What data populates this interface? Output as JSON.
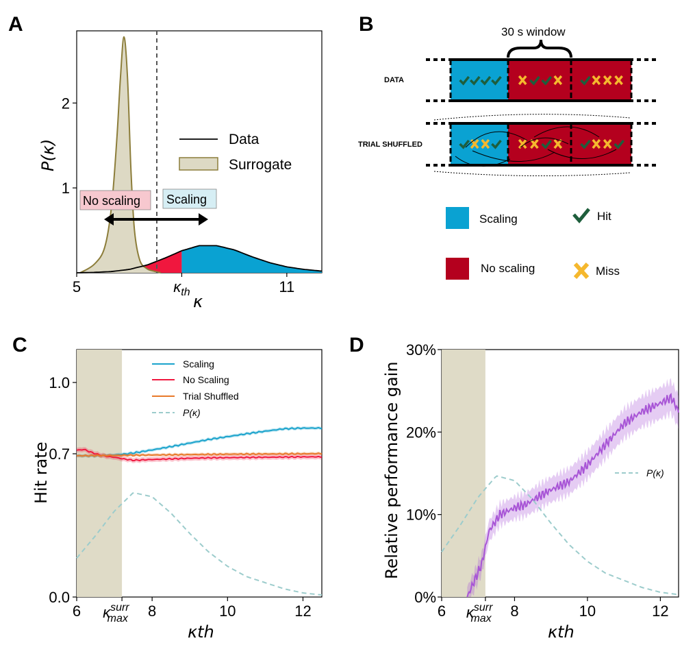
{
  "panels": {
    "a": "A",
    "b": "B",
    "c": "C",
    "d": "D"
  },
  "colors": {
    "scaling": "#1aa3cc",
    "no_scaling": "#f0173e",
    "shuffled": "#e8792a",
    "pk": "#9ccccc",
    "surrogate_fill": "#ddd9c4",
    "surrogate_line": "#8c7d3a",
    "gain": "#a855d6",
    "block_blue": "#0aa2d2",
    "block_red": "#b4001e",
    "hit": "#1e5e3c",
    "miss": "#f5b82e"
  },
  "chart_data": [
    {
      "id": "A",
      "type": "area",
      "xlabel": "κ",
      "ylabel": "P(κ)",
      "xticks": [
        {
          "v": 5,
          "label": "5"
        },
        {
          "v": 8,
          "label": "κth"
        },
        {
          "v": 11,
          "label": "11"
        }
      ],
      "yticks": [
        {
          "v": 1,
          "label": "1"
        },
        {
          "v": 2,
          "label": "2"
        }
      ],
      "xlim": [
        5,
        12.0
      ],
      "ylim": [
        0,
        2.85
      ],
      "threshold": 8,
      "legend": [
        "Data",
        "Surrogate"
      ],
      "region_labels": {
        "no_scaling": "No scaling",
        "scaling": "Scaling"
      },
      "surrogate": {
        "x": [
          5.1,
          5.5,
          5.8,
          6.0,
          6.15,
          6.25,
          6.35,
          6.45,
          6.55,
          6.65,
          6.8,
          7.0,
          7.2,
          7.4
        ],
        "y": [
          0.0,
          0.1,
          0.3,
          0.8,
          1.6,
          2.3,
          2.78,
          2.3,
          1.2,
          0.5,
          0.15,
          0.05,
          0.02,
          0.0
        ]
      },
      "data": {
        "x": [
          5.0,
          5.5,
          6.0,
          6.5,
          7.0,
          7.5,
          8.0,
          8.5,
          9.0,
          9.5,
          10.0,
          10.5,
          11.0,
          11.5,
          12.0
        ],
        "y": [
          0.0,
          0.005,
          0.015,
          0.04,
          0.09,
          0.17,
          0.26,
          0.32,
          0.32,
          0.27,
          0.19,
          0.12,
          0.07,
          0.04,
          0.02
        ]
      }
    },
    {
      "id": "C",
      "type": "line",
      "xlabel": "κth",
      "ylabel": "Hit rate",
      "xticks": [
        {
          "v": 6,
          "label": "6"
        },
        {
          "v": 7.2,
          "label": "κmax surr"
        },
        {
          "v": 8,
          "label": "8"
        },
        {
          "v": 10,
          "label": "10"
        },
        {
          "v": 12,
          "label": "12"
        }
      ],
      "yticks": [
        {
          "v": 0.0,
          "label": "0.0"
        },
        {
          "v": 0.7,
          "label": "0.7"
        },
        {
          "v": 1.0,
          "label": "1.0"
        }
      ],
      "xlim": [
        6,
        12.5
      ],
      "shaded": [
        6,
        7.2
      ],
      "ylim_break": {
        "bottom_range": [
          0.0,
          0.7
        ],
        "top_range": [
          0.7,
          1.0
        ]
      },
      "legend_labels": [
        "Scaling",
        "No Scaling",
        "Trial Shuffled",
        "P(κ)"
      ],
      "series": [
        {
          "name": "Scaling",
          "x": [
            6.0,
            6.5,
            7.0,
            7.5,
            8.0,
            8.5,
            9.0,
            9.5,
            10.0,
            10.5,
            11.0,
            11.5,
            12.0,
            12.5
          ],
          "y": [
            0.69,
            0.69,
            0.694,
            0.703,
            0.716,
            0.73,
            0.745,
            0.76,
            0.772,
            0.784,
            0.795,
            0.805,
            0.808,
            0.808
          ]
        },
        {
          "name": "No Scaling",
          "x": [
            6.0,
            6.2,
            6.4,
            6.6,
            6.8,
            7.0,
            7.2,
            7.5,
            8.0,
            8.5,
            9.0,
            9.5,
            10.0,
            11.0,
            12.0,
            12.5
          ],
          "y": [
            0.715,
            0.718,
            0.705,
            0.695,
            0.687,
            0.683,
            0.676,
            0.668,
            0.672,
            0.675,
            0.678,
            0.68,
            0.681,
            0.683,
            0.685,
            0.685
          ]
        },
        {
          "name": "Trial Shuffled",
          "x": [
            6.0,
            7.0,
            8.0,
            9.0,
            10.0,
            11.0,
            12.0,
            12.5
          ],
          "y": [
            0.69,
            0.692,
            0.694,
            0.696,
            0.698,
            0.699,
            0.7,
            0.701
          ]
        },
        {
          "name": "P(κ)",
          "x": [
            6.0,
            6.5,
            7.0,
            7.5,
            8.0,
            8.5,
            9.0,
            9.5,
            10.0,
            10.5,
            11.0,
            11.5,
            12.0,
            12.5
          ],
          "y": [
            0.19,
            0.3,
            0.42,
            0.51,
            0.49,
            0.41,
            0.31,
            0.22,
            0.15,
            0.1,
            0.07,
            0.04,
            0.02,
            0.01
          ]
        }
      ]
    },
    {
      "id": "D",
      "type": "line",
      "xlabel": "κth",
      "ylabel": "Relative performance gain",
      "xticks": [
        {
          "v": 6,
          "label": "6"
        },
        {
          "v": 7.2,
          "label": "κmax surr"
        },
        {
          "v": 8,
          "label": "8"
        },
        {
          "v": 10,
          "label": "10"
        },
        {
          "v": 12,
          "label": "12"
        }
      ],
      "yticks": [
        {
          "v": 0,
          "label": "0%"
        },
        {
          "v": 10,
          "label": "10%"
        },
        {
          "v": 20,
          "label": "20%"
        },
        {
          "v": 30,
          "label": "30%"
        }
      ],
      "xlim": [
        6,
        12.5
      ],
      "ylim": [
        0,
        30
      ],
      "shaded": [
        6,
        7.2
      ],
      "legend_labels": [
        "P(κ)"
      ],
      "series": [
        {
          "name": "Relative performance gain",
          "x": [
            6.7,
            6.9,
            7.1,
            7.3,
            7.6,
            8.0,
            8.3,
            8.6,
            9.0,
            9.5,
            10.0,
            10.5,
            11.0,
            11.5,
            12.0,
            12.3,
            12.5
          ],
          "y": [
            0.0,
            2.0,
            4.0,
            8.0,
            10.0,
            10.8,
            11.2,
            12.0,
            13.0,
            14.0,
            16.0,
            18.5,
            21.0,
            22.5,
            23.5,
            24.2,
            22.5
          ],
          "band": 2.0
        },
        {
          "name": "P(κ)",
          "x": [
            6.0,
            6.5,
            7.0,
            7.5,
            8.0,
            8.5,
            9.0,
            9.5,
            10.0,
            10.5,
            11.0,
            11.5,
            12.0,
            12.5
          ],
          "y": [
            0.19,
            0.3,
            0.42,
            0.51,
            0.49,
            0.41,
            0.31,
            0.22,
            0.15,
            0.1,
            0.07,
            0.04,
            0.02,
            0.01
          ]
        }
      ]
    }
  ],
  "diagram_b": {
    "window_label": "30 s window",
    "row_labels": [
      "DATA",
      "TRIAL SHUFFLED"
    ],
    "data_row_marks": [
      "hit",
      "hit",
      "hit",
      "hit",
      "|",
      "miss",
      "hit",
      "hit",
      "miss",
      "|",
      "hit",
      "miss",
      "miss",
      "miss"
    ],
    "shuffled_row_marks": [
      "hit",
      "miss",
      "miss",
      "hit",
      "|",
      "miss",
      "miss",
      "hit",
      "miss",
      "|",
      "hit",
      "miss",
      "miss",
      "hit"
    ],
    "legend": {
      "scaling": "Scaling",
      "no_scaling": "No scaling",
      "hit": "Hit",
      "miss": "Miss"
    }
  }
}
